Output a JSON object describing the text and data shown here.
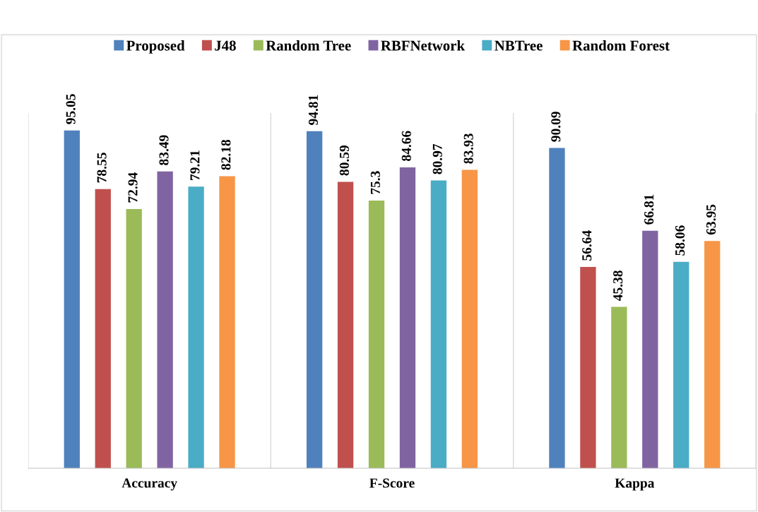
{
  "chart_data": {
    "type": "bar",
    "categories": [
      "Accuracy",
      "F-Score",
      "Kappa"
    ],
    "series": [
      {
        "name": "Proposed",
        "color": "#4f81bd",
        "values": [
          95.05,
          94.81,
          90.09
        ]
      },
      {
        "name": "J48",
        "color": "#c0504d",
        "values": [
          78.55,
          80.59,
          56.64
        ]
      },
      {
        "name": "Random Tree",
        "color": "#9bbb59",
        "values": [
          72.94,
          75.3,
          45.38
        ]
      },
      {
        "name": "RBFNetwork",
        "color": "#8064a2",
        "values": [
          83.49,
          84.66,
          66.81
        ]
      },
      {
        "name": "NBTree",
        "color": "#4bacc6",
        "values": [
          79.21,
          80.97,
          58.06
        ]
      },
      {
        "name": "Random Forest",
        "color": "#f79646",
        "values": [
          82.18,
          83.93,
          63.95
        ]
      }
    ],
    "data_labels": true,
    "grid": "x",
    "legend": "top",
    "tick_labels": "x"
  }
}
